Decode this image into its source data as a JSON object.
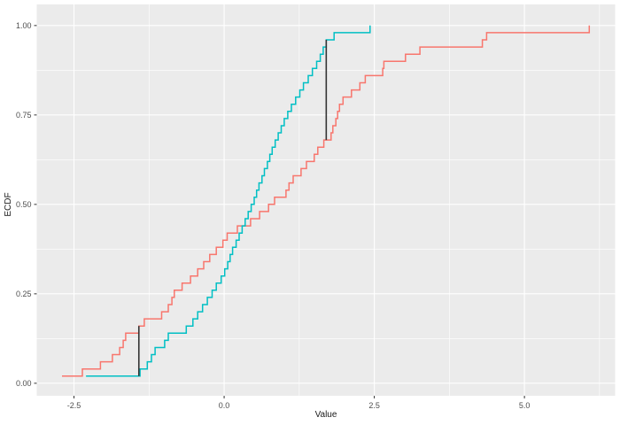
{
  "chart_data": {
    "type": "line",
    "subtype": "ecdf-step",
    "title": "",
    "xlabel": "Value",
    "ylabel": "ECDF",
    "xlim": [
      -3.12,
      6.51
    ],
    "ylim": [
      -0.035,
      1.059
    ],
    "grid": "on",
    "legend": "none",
    "panel_background": "#EBEBEB",
    "grid_major_color": "#FFFFFF",
    "grid_minor_color": "#FFFFFF",
    "tick_label_color": "#4D4D4D",
    "tick_mark_color": "#333333",
    "axis_title_color": "#1A1A1A",
    "x_ticks": {
      "values": [
        -2.5,
        0,
        2.5,
        5
      ],
      "labels": [
        "-2.5",
        "0.0",
        "2.5",
        "5.0"
      ]
    },
    "x_minor_ticks": [
      -1.25,
      1.25,
      3.75,
      6.25
    ],
    "y_ticks": {
      "values": [
        0,
        0.25,
        0.5,
        0.75,
        1
      ],
      "labels": [
        "0.00",
        "0.25",
        "0.50",
        "0.75",
        "1.00"
      ]
    },
    "y_minor_ticks": [
      0.125,
      0.375,
      0.625,
      0.875
    ],
    "series": [
      {
        "id": "ecdf-sample-1",
        "color": "#F8766D",
        "points": [
          [
            -2.7,
            0.02
          ],
          [
            -2.36,
            0.04
          ],
          [
            -2.06,
            0.06
          ],
          [
            -1.86,
            0.08
          ],
          [
            -1.74,
            0.1
          ],
          [
            -1.68,
            0.12
          ],
          [
            -1.64,
            0.14
          ],
          [
            -1.42,
            0.16
          ],
          [
            -1.33,
            0.18
          ],
          [
            -1.04,
            0.2
          ],
          [
            -0.93,
            0.22
          ],
          [
            -0.87,
            0.24
          ],
          [
            -0.83,
            0.26
          ],
          [
            -0.7,
            0.28
          ],
          [
            -0.56,
            0.3
          ],
          [
            -0.44,
            0.32
          ],
          [
            -0.34,
            0.34
          ],
          [
            -0.24,
            0.36
          ],
          [
            -0.13,
            0.38
          ],
          [
            -0.02,
            0.4
          ],
          [
            0.05,
            0.42
          ],
          [
            0.22,
            0.44
          ],
          [
            0.44,
            0.46
          ],
          [
            0.59,
            0.48
          ],
          [
            0.74,
            0.5
          ],
          [
            0.84,
            0.52
          ],
          [
            1.03,
            0.54
          ],
          [
            1.08,
            0.56
          ],
          [
            1.15,
            0.58
          ],
          [
            1.28,
            0.6
          ],
          [
            1.37,
            0.62
          ],
          [
            1.5,
            0.64
          ],
          [
            1.56,
            0.66
          ],
          [
            1.66,
            0.68
          ],
          [
            1.78,
            0.7
          ],
          [
            1.81,
            0.72
          ],
          [
            1.86,
            0.74
          ],
          [
            1.89,
            0.76
          ],
          [
            1.92,
            0.78
          ],
          [
            1.98,
            0.8
          ],
          [
            2.12,
            0.82
          ],
          [
            2.26,
            0.84
          ],
          [
            2.35,
            0.86
          ],
          [
            2.64,
            0.88
          ],
          [
            2.66,
            0.9
          ],
          [
            3.02,
            0.92
          ],
          [
            3.26,
            0.94
          ],
          [
            4.3,
            0.96
          ],
          [
            4.37,
            0.98
          ],
          [
            6.08,
            1.0
          ]
        ]
      },
      {
        "id": "ecdf-sample-2",
        "color": "#00BFC4",
        "points": [
          [
            -2.3,
            0.02
          ],
          [
            -1.4,
            0.04
          ],
          [
            -1.28,
            0.06
          ],
          [
            -1.21,
            0.08
          ],
          [
            -1.15,
            0.1
          ],
          [
            -0.99,
            0.12
          ],
          [
            -0.93,
            0.14
          ],
          [
            -0.63,
            0.16
          ],
          [
            -0.52,
            0.18
          ],
          [
            -0.44,
            0.2
          ],
          [
            -0.36,
            0.22
          ],
          [
            -0.28,
            0.24
          ],
          [
            -0.2,
            0.26
          ],
          [
            -0.13,
            0.28
          ],
          [
            -0.05,
            0.3
          ],
          [
            0.01,
            0.32
          ],
          [
            0.06,
            0.34
          ],
          [
            0.1,
            0.36
          ],
          [
            0.14,
            0.38
          ],
          [
            0.2,
            0.4
          ],
          [
            0.25,
            0.42
          ],
          [
            0.3,
            0.44
          ],
          [
            0.35,
            0.46
          ],
          [
            0.4,
            0.48
          ],
          [
            0.45,
            0.5
          ],
          [
            0.5,
            0.52
          ],
          [
            0.54,
            0.54
          ],
          [
            0.58,
            0.56
          ],
          [
            0.63,
            0.58
          ],
          [
            0.67,
            0.6
          ],
          [
            0.72,
            0.62
          ],
          [
            0.76,
            0.64
          ],
          [
            0.8,
            0.66
          ],
          [
            0.85,
            0.68
          ],
          [
            0.9,
            0.7
          ],
          [
            0.95,
            0.72
          ],
          [
            1.0,
            0.74
          ],
          [
            1.06,
            0.76
          ],
          [
            1.12,
            0.78
          ],
          [
            1.19,
            0.8
          ],
          [
            1.26,
            0.82
          ],
          [
            1.32,
            0.84
          ],
          [
            1.4,
            0.86
          ],
          [
            1.47,
            0.88
          ],
          [
            1.54,
            0.9
          ],
          [
            1.6,
            0.92
          ],
          [
            1.65,
            0.94
          ],
          [
            1.7,
            0.96
          ],
          [
            1.83,
            0.98
          ],
          [
            2.43,
            1.0
          ]
        ]
      }
    ],
    "annotation_segments": [
      {
        "id": "distance-segment-lower",
        "x": -1.42,
        "y_from": 0.02,
        "y_to": 0.16,
        "color": "#333333"
      },
      {
        "id": "distance-segment-upper",
        "x": 1.7,
        "y_from": 0.68,
        "y_to": 0.96,
        "color": "#333333"
      }
    ]
  }
}
